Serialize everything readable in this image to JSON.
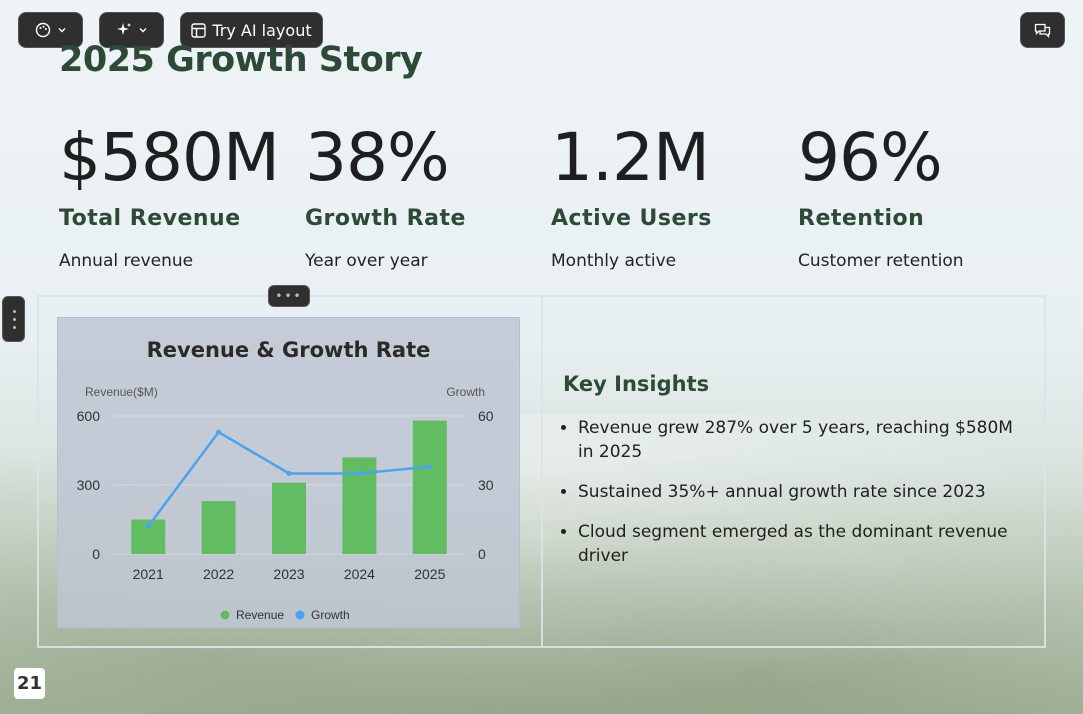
{
  "toolbar": {
    "palette_icon": "palette-icon",
    "sparkle_icon": "sparkle-icon",
    "layout_icon": "layout-icon",
    "ai_layout_label": "Try AI layout",
    "comment_icon": "comment-icon"
  },
  "slide": {
    "title": "2025 Growth Story",
    "stats": [
      {
        "value": "$580M",
        "label": "Total Revenue",
        "sub": "Annual revenue"
      },
      {
        "value": "38%",
        "label": "Growth Rate",
        "sub": "Year over year"
      },
      {
        "value": "1.2M",
        "label": "Active Users",
        "sub": "Monthly active"
      },
      {
        "value": "96%",
        "label": "Retention",
        "sub": "Customer retention"
      }
    ],
    "insights": {
      "heading": "Key Insights",
      "items": [
        "Revenue grew 287% over 5 years, reaching $580M in 2025",
        "Sustained 35%+ annual growth rate since 2023",
        "Cloud segment emerged as the dominant revenue driver"
      ]
    },
    "page_number": "21"
  },
  "chart_data": {
    "type": "bar",
    "title": "Revenue & Growth Rate",
    "categories": [
      "2021",
      "2022",
      "2023",
      "2024",
      "2025"
    ],
    "series": [
      {
        "name": "Revenue",
        "type": "bar",
        "axis": "left",
        "values": [
          150,
          230,
          310,
          420,
          580
        ],
        "color": "#62bd62"
      },
      {
        "name": "Growth",
        "type": "line",
        "axis": "right",
        "values": [
          12,
          53,
          35,
          35,
          38
        ],
        "color": "#4aa3f0"
      }
    ],
    "ylabel": "Revenue($M)",
    "y2label": "Growth",
    "ylim": [
      0,
      600
    ],
    "y2lim": [
      0,
      60
    ],
    "yticks": [
      "0",
      "300",
      "600"
    ],
    "y2ticks": [
      "0",
      "30",
      "60"
    ],
    "grid": true,
    "legend": "bottom"
  }
}
